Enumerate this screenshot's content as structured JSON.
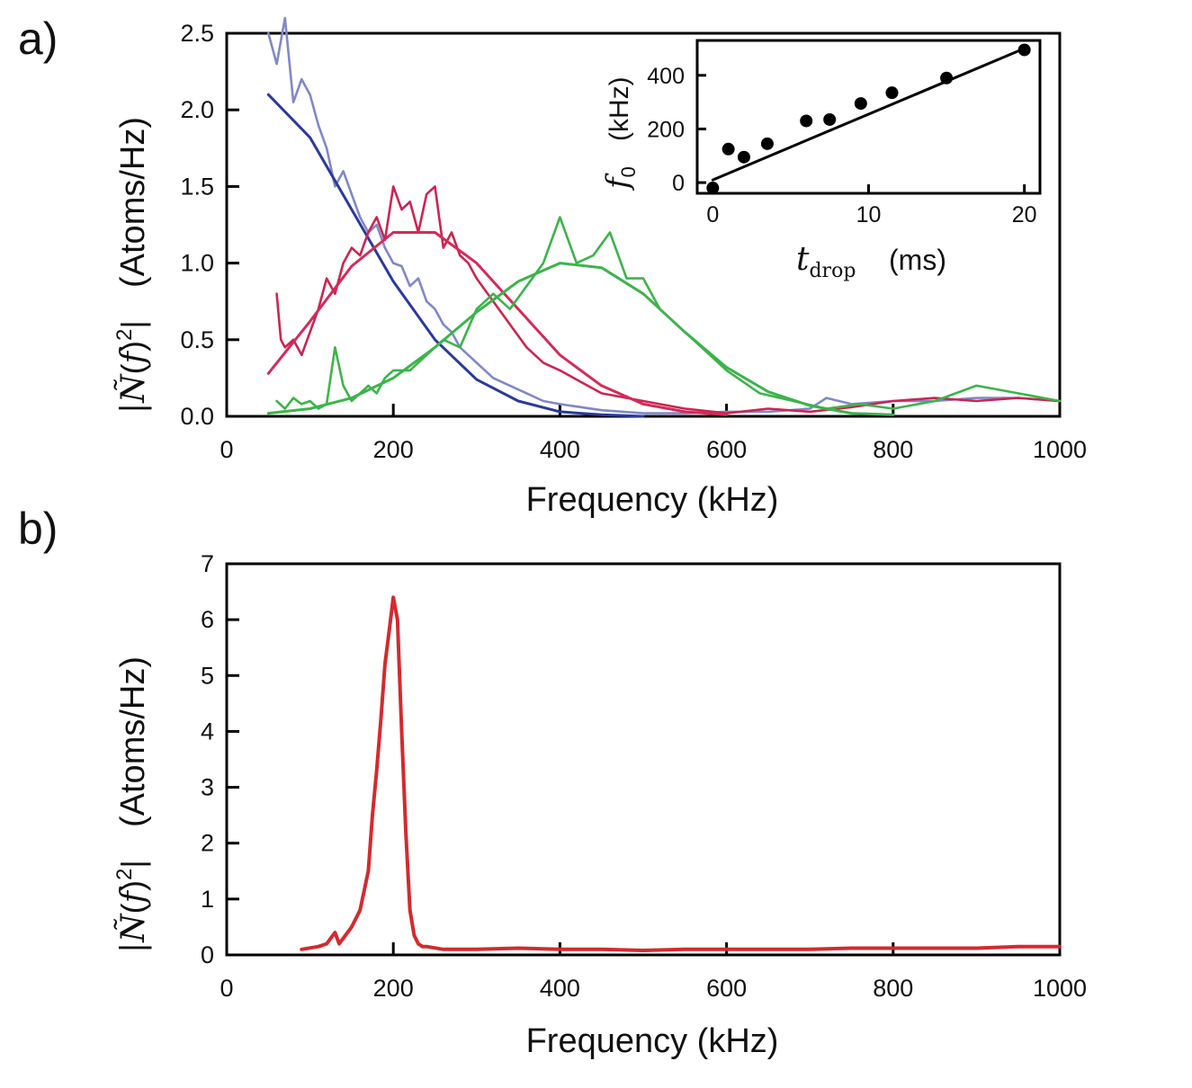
{
  "panels": [
    {
      "label": "a)",
      "ylabel": "|Ñ(f)²|  (Atoms/Hz)",
      "ylabel_unit": "(Atoms/Hz)",
      "xlabel": "Frequency (kHz)",
      "xticks": [
        "0",
        "200",
        "400",
        "600",
        "800",
        "1000"
      ],
      "yticks": [
        "0.0",
        "0.5",
        "1.0",
        "1.5",
        "2.0",
        "2.5"
      ]
    },
    {
      "label": "b)",
      "ylabel": "|Ñ(f)²|  (Atoms/Hz)",
      "ylabel_unit": "(Atoms/Hz)",
      "xlabel": "Frequency (kHz)",
      "xticks": [
        "0",
        "200",
        "400",
        "600",
        "800",
        "1000"
      ],
      "yticks": [
        "0",
        "1",
        "2",
        "3",
        "4",
        "5",
        "6",
        "7"
      ]
    }
  ],
  "inset": {
    "ylabel_unit": "(kHz)",
    "xlabel_unit": "(ms)",
    "xticks": [
      "0",
      "10",
      "20"
    ],
    "yticks": [
      "0",
      "200",
      "400"
    ]
  },
  "colors": {
    "blue_data": "#8088c8",
    "blue_fit": "#2a3a9c",
    "red_data": "#cc2452",
    "red_fit": "#d42a5a",
    "green_data": "#3cb44a",
    "green_fit": "#3cb44a",
    "panel_b": "#d42a2e",
    "axis": "#000000"
  },
  "chart_data": [
    {
      "type": "line",
      "panel": "a",
      "xlabel": "Frequency (kHz)",
      "ylabel": "|Ñ(f)²| (Atoms/Hz)",
      "xlim": [
        0,
        1000
      ],
      "ylim": [
        0,
        2.5
      ],
      "series": [
        {
          "kind": "data",
          "color": "blue",
          "x": [
            50,
            60,
            70,
            80,
            90,
            100,
            110,
            120,
            130,
            140,
            150,
            160,
            170,
            180,
            190,
            200,
            210,
            220,
            230,
            240,
            250,
            260,
            270,
            280,
            290,
            300,
            320,
            340,
            360,
            380,
            400,
            450,
            500,
            550,
            600,
            650,
            700,
            720,
            750,
            800,
            850,
            900,
            950,
            1000
          ],
          "y": [
            2.5,
            2.3,
            2.6,
            2.05,
            2.2,
            2.1,
            1.9,
            1.75,
            1.5,
            1.6,
            1.45,
            1.3,
            1.2,
            1.25,
            1.1,
            1.0,
            0.98,
            0.85,
            0.9,
            0.75,
            0.7,
            0.6,
            0.55,
            0.45,
            0.4,
            0.35,
            0.25,
            0.2,
            0.15,
            0.1,
            0.08,
            0.04,
            0.02,
            0.02,
            0.03,
            0.03,
            0.05,
            0.12,
            0.08,
            0.1,
            0.1,
            0.12,
            0.12,
            0.1
          ]
        },
        {
          "kind": "fit",
          "color": "blue",
          "x": [
            50,
            100,
            150,
            200,
            250,
            300,
            350,
            400,
            450,
            500
          ],
          "y": [
            2.1,
            1.82,
            1.35,
            0.88,
            0.5,
            0.24,
            0.1,
            0.03,
            0.01,
            0.0
          ]
        },
        {
          "kind": "data",
          "color": "red",
          "x": [
            60,
            65,
            70,
            80,
            90,
            100,
            110,
            120,
            130,
            140,
            150,
            160,
            170,
            180,
            190,
            200,
            210,
            220,
            230,
            240,
            250,
            260,
            270,
            280,
            290,
            300,
            320,
            340,
            360,
            380,
            400,
            450,
            500,
            550,
            600,
            650,
            700,
            750,
            800,
            850,
            900,
            950,
            1000
          ],
          "y": [
            0.8,
            0.5,
            0.45,
            0.5,
            0.4,
            0.55,
            0.7,
            0.9,
            0.8,
            1.0,
            1.1,
            1.05,
            1.2,
            1.3,
            1.15,
            1.5,
            1.35,
            1.4,
            1.2,
            1.45,
            1.5,
            1.1,
            1.2,
            1.05,
            1.0,
            0.9,
            0.75,
            0.6,
            0.45,
            0.35,
            0.3,
            0.15,
            0.1,
            0.05,
            0.02,
            0.05,
            0.03,
            0.06,
            0.1,
            0.12,
            0.1,
            0.12,
            0.1
          ]
        },
        {
          "kind": "fit",
          "color": "red",
          "x": [
            50,
            100,
            150,
            200,
            250,
            300,
            350,
            400,
            450,
            500,
            550,
            600
          ],
          "y": [
            0.28,
            0.62,
            0.98,
            1.2,
            1.2,
            1.0,
            0.7,
            0.4,
            0.2,
            0.08,
            0.03,
            0.01
          ]
        },
        {
          "kind": "data",
          "color": "green",
          "x": [
            60,
            70,
            80,
            90,
            100,
            110,
            120,
            130,
            140,
            150,
            160,
            170,
            180,
            190,
            200,
            220,
            240,
            260,
            280,
            300,
            320,
            340,
            360,
            380,
            400,
            420,
            440,
            460,
            480,
            500,
            520,
            540,
            560,
            580,
            600,
            640,
            680,
            720,
            760,
            800,
            850,
            900,
            950,
            1000
          ],
          "y": [
            0.1,
            0.05,
            0.12,
            0.08,
            0.1,
            0.05,
            0.08,
            0.45,
            0.2,
            0.1,
            0.15,
            0.2,
            0.15,
            0.25,
            0.3,
            0.3,
            0.4,
            0.5,
            0.45,
            0.7,
            0.8,
            0.7,
            0.85,
            1.0,
            1.3,
            1.0,
            1.05,
            1.2,
            0.9,
            0.9,
            0.7,
            0.6,
            0.5,
            0.4,
            0.3,
            0.15,
            0.1,
            0.05,
            0.08,
            0.05,
            0.1,
            0.2,
            0.15,
            0.1
          ]
        },
        {
          "kind": "fit",
          "color": "green",
          "x": [
            50,
            100,
            150,
            200,
            250,
            300,
            350,
            400,
            450,
            500,
            550,
            600,
            650,
            700,
            750,
            800
          ],
          "y": [
            0.02,
            0.05,
            0.12,
            0.25,
            0.45,
            0.68,
            0.88,
            1.0,
            0.97,
            0.8,
            0.55,
            0.32,
            0.16,
            0.07,
            0.02,
            0.01
          ]
        }
      ]
    },
    {
      "type": "scatter",
      "panel": "a-inset",
      "xlabel": "t_drop (ms)",
      "ylabel": "f_0 (kHz)",
      "xlim": [
        -1,
        21
      ],
      "ylim": [
        -40,
        530
      ],
      "points": {
        "x": [
          0,
          1,
          2,
          3.5,
          6,
          7.5,
          9.5,
          11.5,
          15,
          20
        ],
        "y": [
          -20,
          125,
          95,
          145,
          230,
          235,
          295,
          335,
          390,
          495
        ]
      },
      "fit": {
        "x": [
          0,
          20
        ],
        "y": [
          10,
          500
        ]
      }
    },
    {
      "type": "line",
      "panel": "b",
      "xlabel": "Frequency (kHz)",
      "ylabel": "|Ñ(f)²| (Atoms/Hz)",
      "xlim": [
        0,
        1000
      ],
      "ylim": [
        0,
        7
      ],
      "series": [
        {
          "kind": "data",
          "color": "red",
          "x": [
            90,
            110,
            120,
            130,
            135,
            140,
            150,
            160,
            170,
            175,
            180,
            185,
            190,
            195,
            200,
            205,
            210,
            215,
            220,
            225,
            230,
            235,
            240,
            260,
            300,
            350,
            400,
            450,
            500,
            550,
            600,
            650,
            700,
            750,
            800,
            850,
            900,
            950,
            1000
          ],
          "y": [
            0.1,
            0.15,
            0.2,
            0.4,
            0.2,
            0.3,
            0.5,
            0.8,
            1.5,
            2.5,
            3.3,
            4.2,
            5.2,
            5.8,
            6.4,
            6.0,
            4.0,
            2.2,
            0.8,
            0.35,
            0.2,
            0.15,
            0.15,
            0.1,
            0.1,
            0.12,
            0.1,
            0.1,
            0.08,
            0.1,
            0.1,
            0.1,
            0.1,
            0.12,
            0.12,
            0.12,
            0.12,
            0.15,
            0.15
          ]
        }
      ]
    }
  ]
}
